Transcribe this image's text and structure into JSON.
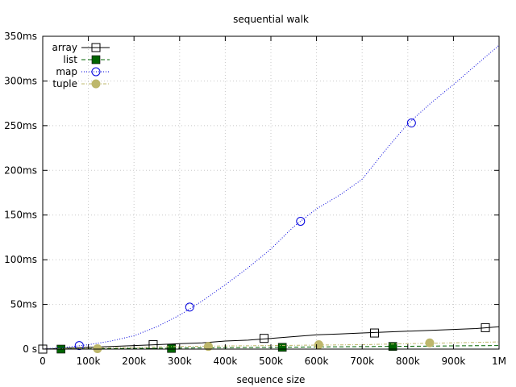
{
  "chart_data": {
    "type": "line",
    "title": "sequential walk",
    "xlabel": "sequence size",
    "ylabel": "",
    "xlim": [
      0,
      1000000
    ],
    "ylim": [
      0,
      350
    ],
    "x_ticks": [
      {
        "value": 0,
        "label": "0"
      },
      {
        "value": 100000,
        "label": "100k"
      },
      {
        "value": 200000,
        "label": "200k"
      },
      {
        "value": 300000,
        "label": "300k"
      },
      {
        "value": 400000,
        "label": "400k"
      },
      {
        "value": 500000,
        "label": "500k"
      },
      {
        "value": 600000,
        "label": "600k"
      },
      {
        "value": 700000,
        "label": "700k"
      },
      {
        "value": 800000,
        "label": "800k"
      },
      {
        "value": 900000,
        "label": "900k"
      },
      {
        "value": 1000000,
        "label": "1M"
      }
    ],
    "y_ticks": [
      {
        "value": 0,
        "label": "0 s"
      },
      {
        "value": 50,
        "label": "50ms"
      },
      {
        "value": 100,
        "label": "100ms"
      },
      {
        "value": 150,
        "label": "150ms"
      },
      {
        "value": 200,
        "label": "200ms"
      },
      {
        "value": 250,
        "label": "250ms"
      },
      {
        "value": 300,
        "label": "300ms"
      },
      {
        "value": 350,
        "label": "350ms"
      }
    ],
    "grid": true,
    "legend_position": "top-left",
    "series": [
      {
        "name": "array",
        "color": "#000000",
        "dash": "",
        "marker": "open-square",
        "x": [
          0,
          50000,
          100000,
          150000,
          200000,
          250000,
          300000,
          350000,
          400000,
          450000,
          500000,
          550000,
          600000,
          650000,
          700000,
          750000,
          800000,
          850000,
          900000,
          950000,
          1000000
        ],
        "y": [
          0,
          1,
          2,
          3,
          4,
          5,
          6,
          7,
          9,
          10,
          12,
          14,
          16,
          17,
          18,
          19,
          20,
          21,
          22,
          23,
          25
        ],
        "markers_x": [
          0,
          242000,
          485000,
          727000,
          970000
        ],
        "markers_y": [
          0,
          5,
          12,
          18,
          24
        ]
      },
      {
        "name": "list",
        "color": "#006400",
        "dash": "5,3",
        "marker": "filled-square",
        "x": [
          0,
          100000,
          200000,
          300000,
          400000,
          500000,
          600000,
          700000,
          800000,
          900000,
          1000000
        ],
        "y": [
          0,
          0.4,
          0.8,
          1.2,
          1.6,
          2,
          2.4,
          2.8,
          3.2,
          3.6,
          4
        ],
        "markers_x": [
          40000,
          282000,
          525000,
          767000
        ],
        "markers_y": [
          0,
          0.7,
          2,
          3
        ]
      },
      {
        "name": "map",
        "color": "#0000dd",
        "dash": "1,2",
        "marker": "open-circle",
        "x": [
          0,
          50000,
          100000,
          150000,
          200000,
          250000,
          300000,
          350000,
          400000,
          450000,
          500000,
          550000,
          600000,
          650000,
          700000,
          750000,
          800000,
          850000,
          900000,
          950000,
          1000000
        ],
        "y": [
          0,
          2,
          5,
          9,
          15,
          25,
          38,
          54,
          72,
          91,
          112,
          137,
          157,
          172,
          190,
          222,
          252,
          275,
          296,
          318,
          340
        ],
        "markers_x": [
          80000,
          322000,
          565000,
          808000
        ],
        "markers_y": [
          4,
          47,
          143,
          253
        ]
      },
      {
        "name": "tuple",
        "color": "#bdb76b",
        "dash": "4,2,1,2",
        "marker": "filled-circle",
        "x": [
          0,
          100000,
          200000,
          300000,
          400000,
          500000,
          600000,
          700000,
          800000,
          900000,
          1000000
        ],
        "y": [
          0,
          1,
          2,
          3,
          3.5,
          4,
          4.5,
          5,
          6,
          7,
          8
        ],
        "markers_x": [
          120000,
          363000,
          605000,
          848000
        ],
        "markers_y": [
          0.5,
          3,
          5,
          7
        ]
      }
    ]
  }
}
